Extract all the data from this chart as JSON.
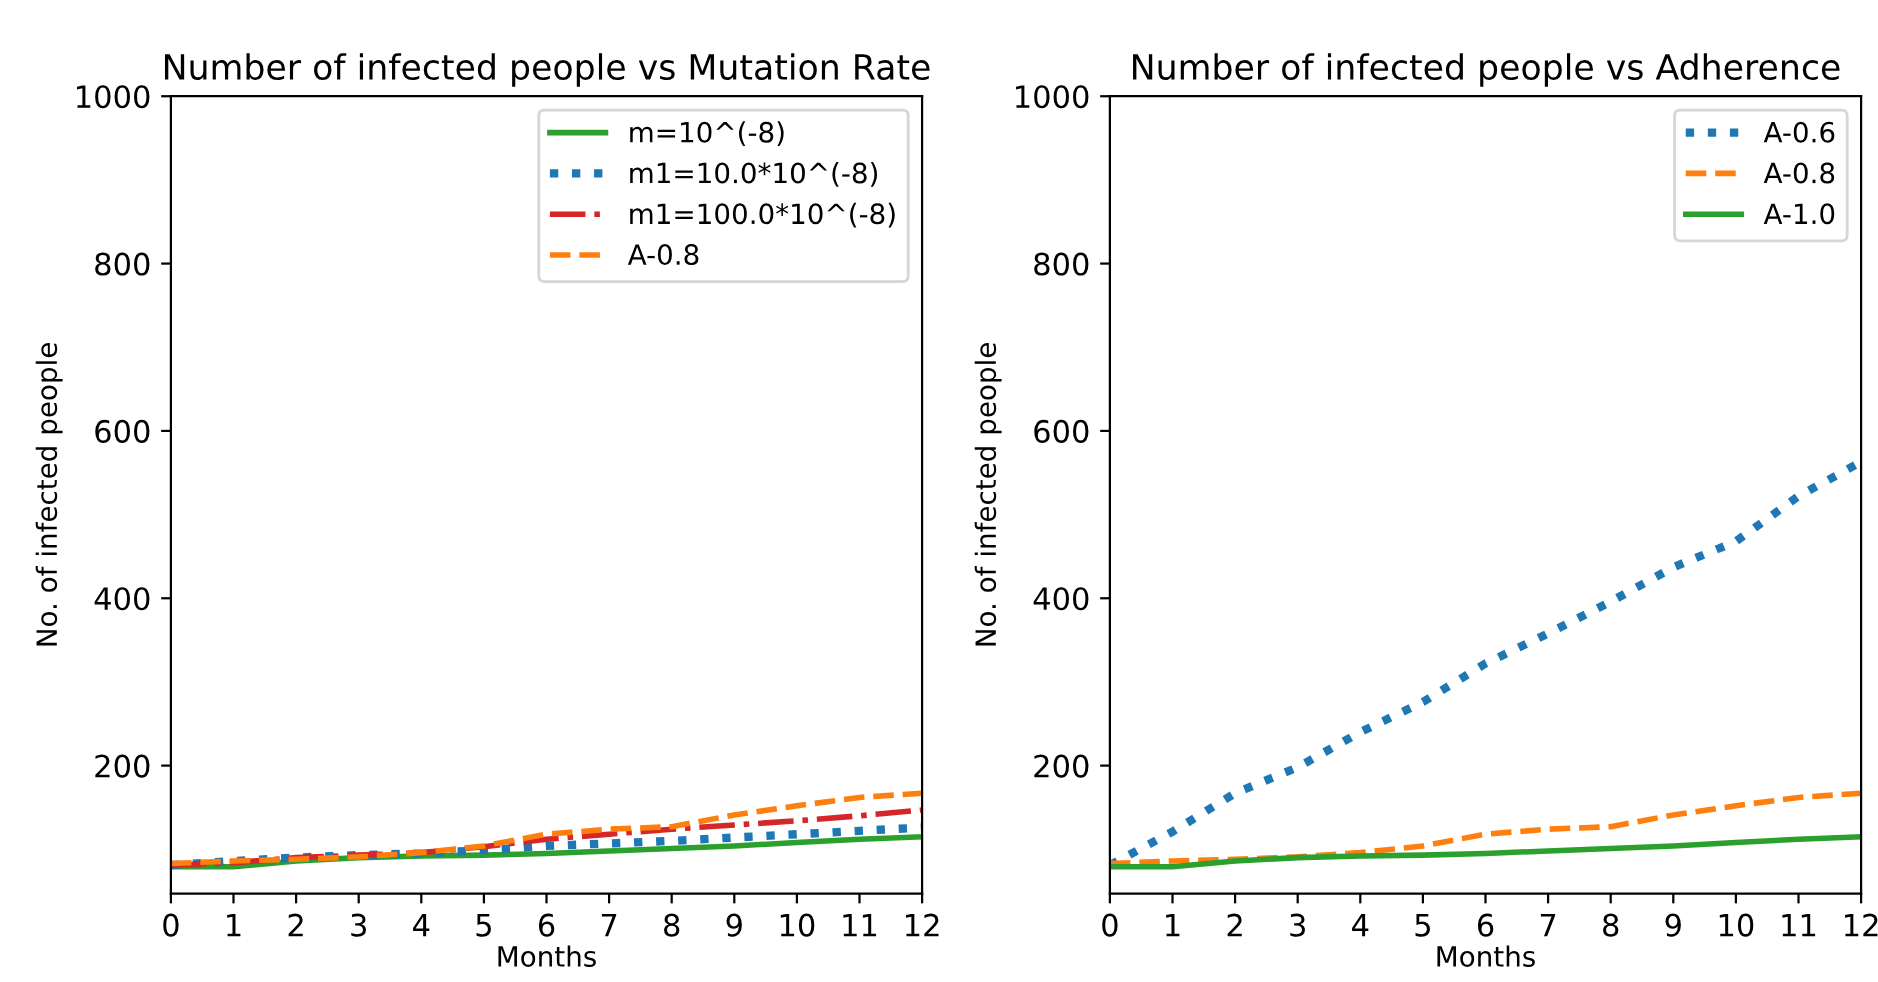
{
  "chart_data": [
    {
      "type": "line",
      "title": "Number of infected people vs Mutation Rate",
      "xlabel": "Months",
      "ylabel": "No. of infected people",
      "x": [
        0,
        1,
        2,
        3,
        4,
        5,
        6,
        7,
        8,
        9,
        10,
        11,
        12
      ],
      "xlim": [
        0,
        12
      ],
      "xticks": [
        0,
        1,
        2,
        3,
        4,
        5,
        6,
        7,
        8,
        9,
        10,
        11,
        12
      ],
      "ylim": [
        47,
        1000
      ],
      "yticks": [
        200,
        400,
        600,
        800,
        1000
      ],
      "legend": "top right",
      "grid": false,
      "series": [
        {
          "name": "m=10^(-8)",
          "color": "#2ca02c",
          "line_style": "solid",
          "values": [
            79,
            79,
            86,
            90,
            92,
            93,
            95,
            98,
            101,
            104,
            108,
            112,
            115
          ]
        },
        {
          "name": "m1=10.0*10^(-8)",
          "color": "#1f77b4",
          "line_style": "dotted",
          "values": [
            81,
            86,
            90,
            93,
            95,
            99,
            104,
            107,
            110,
            114,
            118,
            122,
            126
          ]
        },
        {
          "name": "m1=100.0*10^(-8)",
          "color": "#d62728",
          "line_style": "dashdot",
          "values": [
            81,
            84,
            90,
            93,
            96,
            103,
            112,
            118,
            124,
            129,
            134,
            140,
            147
          ]
        },
        {
          "name": "A-0.8",
          "color": "#ff7f0e",
          "line_style": "dashed",
          "values": [
            83,
            86,
            88,
            91,
            96,
            104,
            118,
            124,
            127,
            141,
            152,
            162,
            167
          ]
        }
      ]
    },
    {
      "type": "line",
      "title": "Number of infected people vs Adherence",
      "xlabel": "Months",
      "ylabel": "No. of infected people",
      "x": [
        0,
        1,
        2,
        3,
        4,
        5,
        6,
        7,
        8,
        9,
        10,
        11,
        12
      ],
      "xlim": [
        0,
        12
      ],
      "xticks": [
        0,
        1,
        2,
        3,
        4,
        5,
        6,
        7,
        8,
        9,
        10,
        11,
        12
      ],
      "ylim": [
        47,
        1000
      ],
      "yticks": [
        200,
        400,
        600,
        800,
        1000
      ],
      "legend": "top right",
      "grid": false,
      "series": [
        {
          "name": "A-0.6",
          "color": "#1f77b4",
          "line_style": "dotted",
          "values": [
            81,
            121,
            167,
            198,
            240,
            276,
            322,
            358,
            396,
            437,
            468,
            522,
            563
          ]
        },
        {
          "name": "A-0.8",
          "color": "#ff7f0e",
          "line_style": "dashed",
          "values": [
            83,
            86,
            88,
            91,
            96,
            104,
            118,
            124,
            127,
            141,
            152,
            162,
            167
          ]
        },
        {
          "name": "A-1.0",
          "color": "#2ca02c",
          "line_style": "solid",
          "values": [
            79,
            79,
            86,
            90,
            92,
            93,
            95,
            98,
            101,
            104,
            108,
            112,
            115
          ]
        }
      ]
    }
  ]
}
